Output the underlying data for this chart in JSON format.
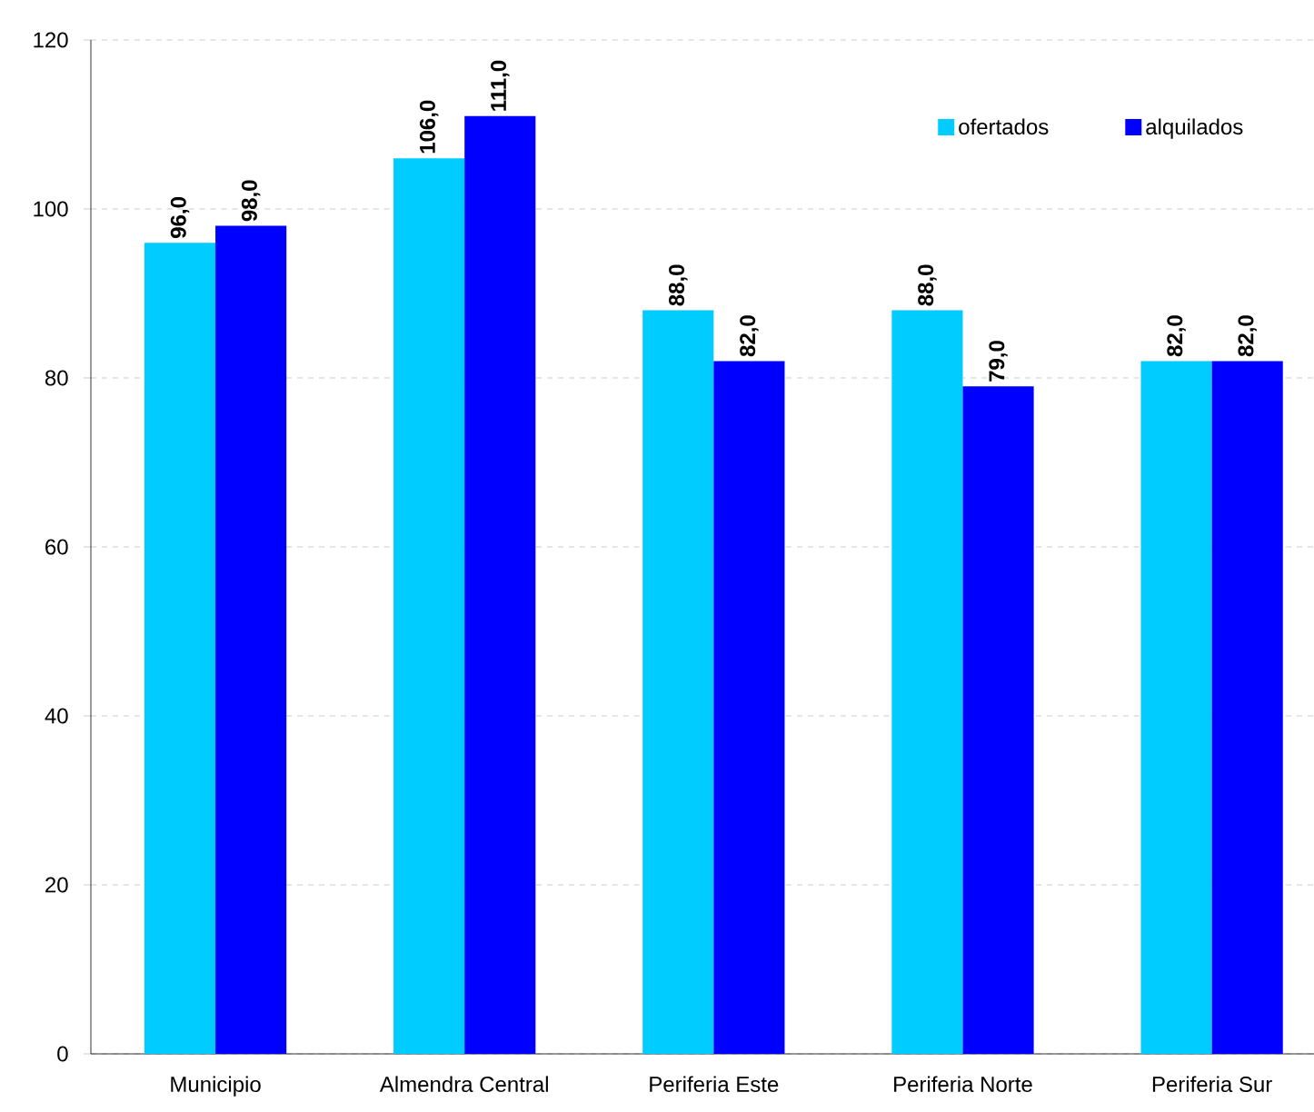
{
  "chart_data": {
    "type": "bar",
    "categories": [
      "Municipio",
      "Almendra Central",
      "Periferia Este",
      "Periferia Norte",
      "Periferia Sur"
    ],
    "series": [
      {
        "name": "ofertados",
        "color": "#00ccff",
        "values": [
          96,
          106,
          88,
          88,
          82
        ],
        "value_labels": [
          "96,0",
          "106,0",
          "88,0",
          "88,0",
          "82,0"
        ]
      },
      {
        "name": "alquilados",
        "color": "#0000ff",
        "values": [
          98,
          111,
          82,
          79,
          82
        ],
        "value_labels": [
          "98,0",
          "111,0",
          "82,0",
          "79,0",
          "82,0"
        ]
      }
    ],
    "ylim": [
      0,
      120
    ],
    "yticks": [
      0,
      20,
      40,
      60,
      80,
      100,
      120
    ],
    "grid": "y",
    "legend": "top right"
  }
}
